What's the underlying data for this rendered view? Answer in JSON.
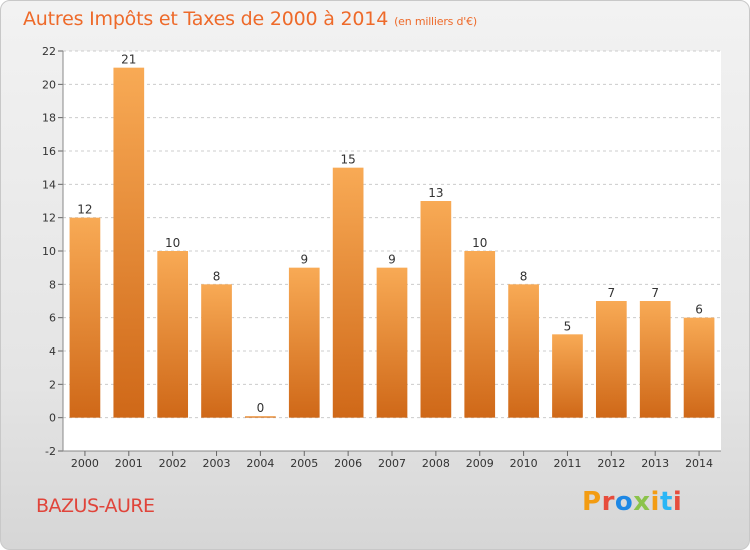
{
  "header": {
    "title": "Autres Impôts et Taxes de 2000 à 2014",
    "unit": "(en milliers d'€)"
  },
  "footer": {
    "location": "BAZUS-AURE",
    "brand": "Proxiti",
    "brand_colors": [
      "#f39c12",
      "#e74c3c",
      "#1e88e5",
      "#8bc34a",
      "#f39c12",
      "#29b6f6",
      "#e74c3c"
    ]
  },
  "colors": {
    "title": "#ee6a2a",
    "bar_top": "#f8aa55",
    "bar_bottom": "#cf6818",
    "location": "#e0443a"
  },
  "chart_data": {
    "type": "bar",
    "title": "Autres Impôts et Taxes de 2000 à 2014",
    "categories": [
      "2000",
      "2001",
      "2002",
      "2003",
      "2004",
      "2005",
      "2006",
      "2007",
      "2008",
      "2009",
      "2010",
      "2011",
      "2012",
      "2013",
      "2014"
    ],
    "values": [
      12,
      21,
      10,
      8,
      0,
      9,
      15,
      9,
      13,
      10,
      8,
      5,
      7,
      7,
      6
    ],
    "data_labels": [
      "12",
      "21",
      "10",
      "8",
      "0",
      "9",
      "15",
      "9",
      "13",
      "10",
      "8",
      "5",
      "7",
      "7",
      "6"
    ],
    "ylim": [
      -2,
      22
    ],
    "yticks": [
      "-2",
      "0",
      "2",
      "4",
      "6",
      "8",
      "10",
      "12",
      "14",
      "16",
      "18",
      "20",
      "22"
    ],
    "grid": true,
    "legend": "none"
  }
}
